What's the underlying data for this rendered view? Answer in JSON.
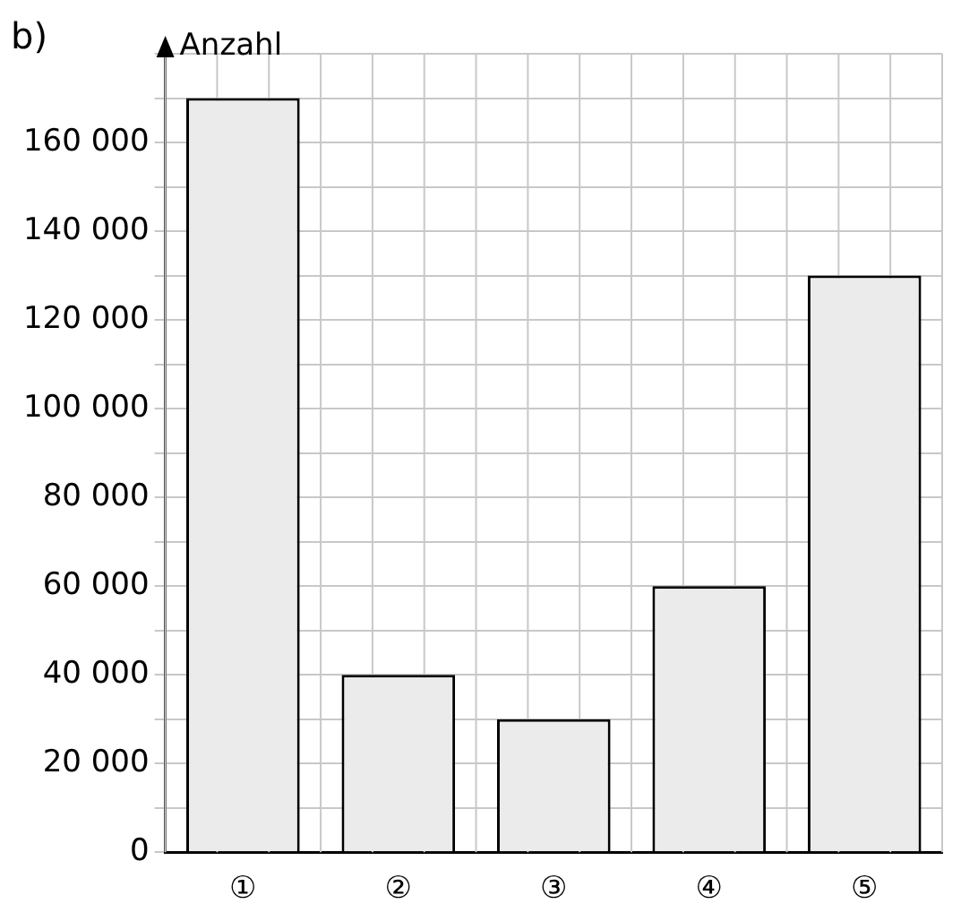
{
  "chart_data": {
    "type": "bar",
    "ylabel": "Anzahl",
    "annotations": [
      "b)"
    ],
    "categories": [
      "①",
      "②",
      "③",
      "④",
      "⑤"
    ],
    "values": [
      170000,
      40000,
      30000,
      60000,
      130000
    ],
    "color": "#ebebeb",
    "ylim": [
      0,
      180000
    ],
    "yticks": [
      0,
      {
        "value": 10000,
        "label": null
      },
      {
        "value": 20000,
        "label": "20 000"
      },
      {
        "value": 30000,
        "label": null
      },
      {
        "value": 40000,
        "label": "40 000"
      },
      {
        "value": 50000,
        "label": null
      },
      {
        "value": 60000,
        "label": "60 000"
      },
      {
        "value": 70000,
        "label": null
      },
      {
        "value": 80000,
        "label": "80 000"
      },
      {
        "value": 90000,
        "label": null
      },
      {
        "value": 100000,
        "label": "100 000"
      },
      {
        "value": 110000,
        "label": null
      },
      {
        "value": 120000,
        "label": "120 000"
      },
      {
        "value": 130000,
        "label": null
      },
      {
        "value": 140000,
        "label": "140 000"
      },
      {
        "value": 150000,
        "label": null
      },
      {
        "value": 160000,
        "label": "160 000"
      },
      {
        "value": 170000,
        "label": null
      },
      {
        "value": 180000,
        "label": null
      }
    ],
    "grid": true,
    "legend": false
  }
}
